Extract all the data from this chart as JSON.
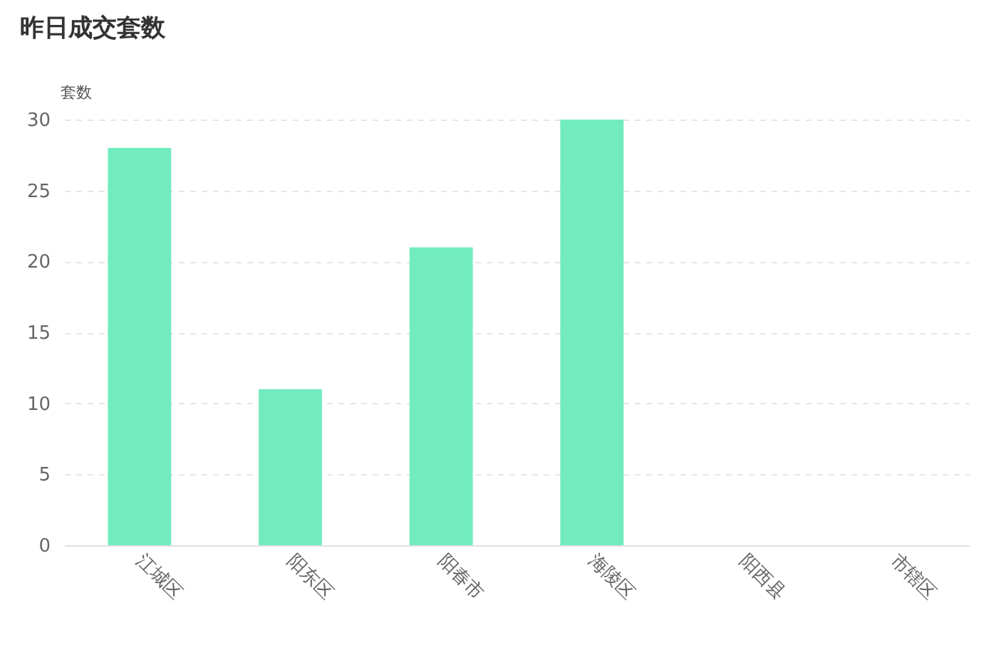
{
  "chart_data": {
    "type": "bar",
    "title": "昨日成交套数",
    "ylabel": "套数",
    "categories": [
      "江城区",
      "阳东区",
      "阳春市",
      "海陵区",
      "阳西县",
      "市辖区"
    ],
    "values": [
      28,
      11,
      21,
      30,
      0,
      0
    ],
    "color": "#72ecbf",
    "ylim": [
      0,
      30
    ],
    "yticks": [
      0,
      5,
      10,
      15,
      20,
      25,
      30
    ],
    "grid": "y"
  }
}
